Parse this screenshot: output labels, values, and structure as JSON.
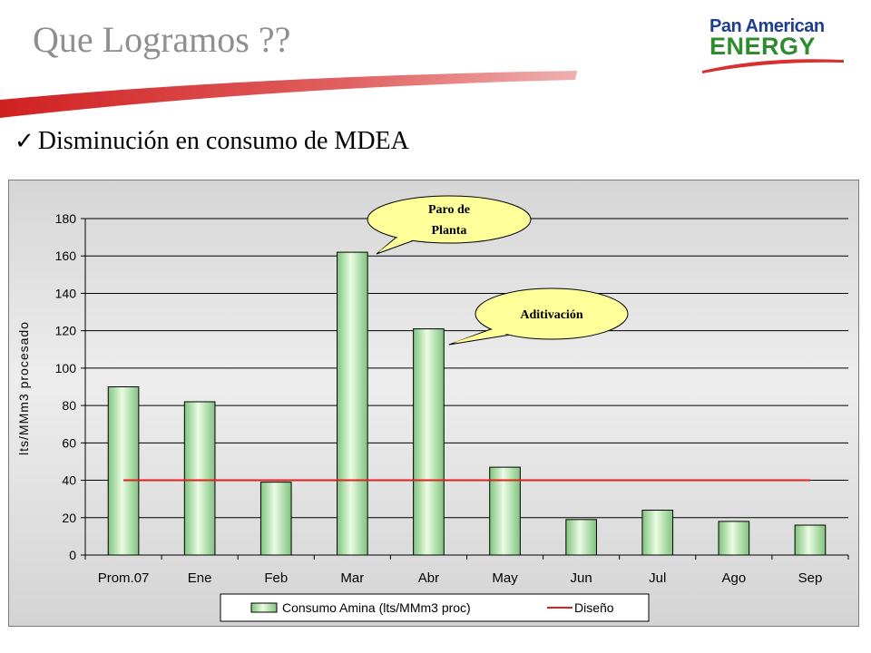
{
  "slide": {
    "title": "Que Logramos ??",
    "bullet": "Disminución  en consumo  de MDEA"
  },
  "logo": {
    "line1": "Pan American",
    "line2": "ENERGY"
  },
  "colors": {
    "bar_light": "#e8f8e0",
    "bar_dark": "#8ccf8c",
    "design_line": "#e02020",
    "callout_fill": "#ffff99",
    "title_gray": "#8f8f8f",
    "swoosh_red": "#d83030"
  },
  "chart_data": {
    "type": "bar",
    "categories": [
      "Prom.07",
      "Ene",
      "Feb",
      "Mar",
      "Abr",
      "May",
      "Jun",
      "Jul",
      "Ago",
      "Sep"
    ],
    "series": [
      {
        "name": "Consumo Amina (lts/MMm3 proc)",
        "type": "bar",
        "values": [
          90,
          82,
          39,
          162,
          121,
          47,
          19,
          24,
          18,
          16
        ]
      },
      {
        "name": "Diseño",
        "type": "line",
        "values": [
          40,
          40,
          40,
          40,
          40,
          40,
          40,
          40,
          40,
          40
        ]
      }
    ],
    "ylabel": "lts/MMm3 procesado",
    "ylim": [
      0,
      180
    ],
    "yticks": [
      0,
      20,
      40,
      60,
      80,
      100,
      120,
      140,
      160,
      180
    ],
    "grid": true,
    "legend_position": "bottom",
    "annotations": [
      {
        "category": "Mar",
        "line1": "Paro de",
        "line2": "Planta"
      },
      {
        "category": "Abr",
        "text": "Aditivación"
      }
    ]
  }
}
